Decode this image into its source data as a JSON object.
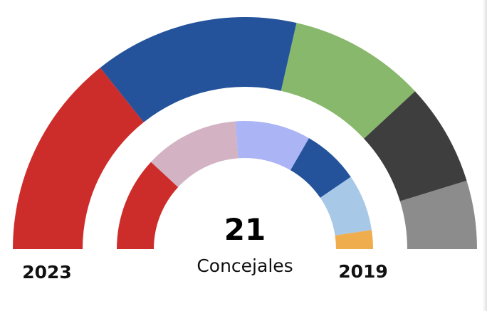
{
  "chart_data": {
    "type": "pie",
    "total_seats": "21",
    "center_label": "Concejales",
    "rings": [
      {
        "year": "2023",
        "position": "outer",
        "segments": [
          {
            "value": 6,
            "color": "#cd2d2a"
          },
          {
            "value": 6,
            "color": "#24539b"
          },
          {
            "value": 4,
            "color": "#87b86c"
          },
          {
            "value": 3,
            "color": "#3e3e3e"
          },
          {
            "value": 2,
            "color": "#8c8c8c"
          }
        ]
      },
      {
        "year": "2019",
        "position": "inner",
        "segments": [
          {
            "value": 5,
            "color": "#cd2d2a"
          },
          {
            "value": 5,
            "color": "#d2b2c3"
          },
          {
            "value": 4,
            "color": "#abb4f4"
          },
          {
            "value": 3,
            "color": "#24539b"
          },
          {
            "value": 3,
            "color": "#a7c8e6"
          },
          {
            "value": 1,
            "color": "#f0ad4e"
          }
        ]
      }
    ]
  }
}
